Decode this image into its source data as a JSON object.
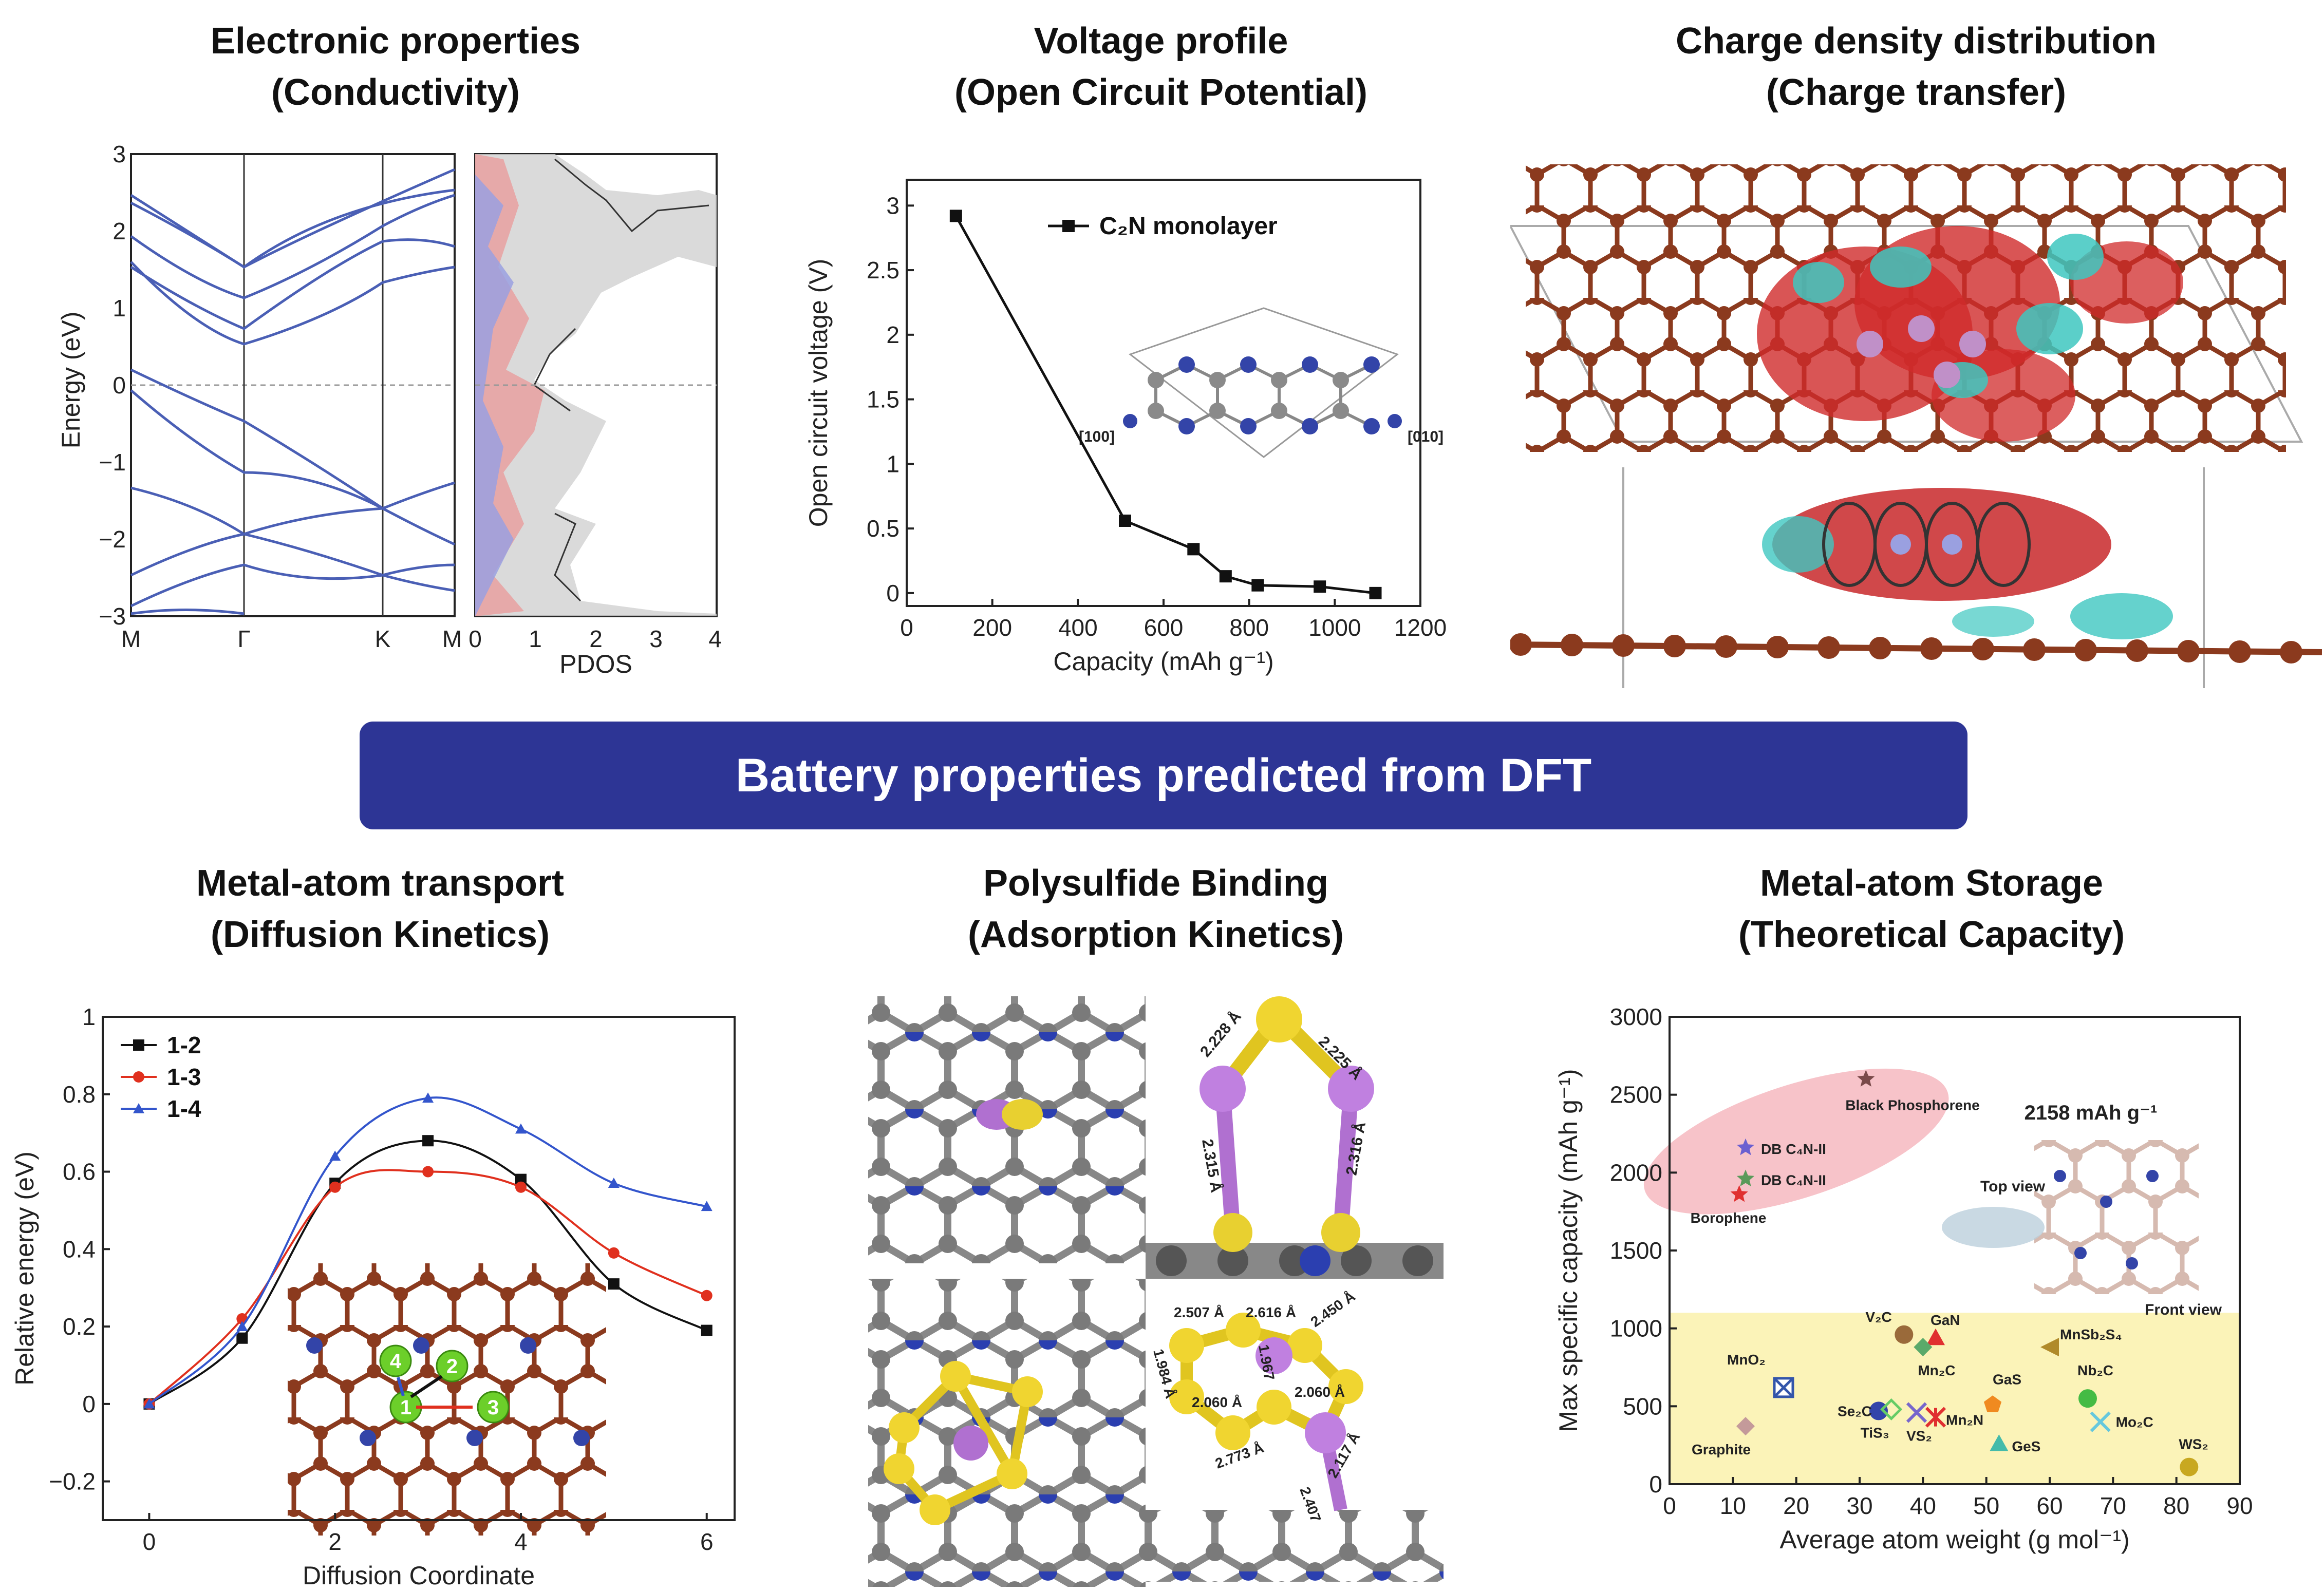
{
  "banner": "Battery properties predicted from DFT",
  "panels": {
    "electronic": {
      "title1": "Electronic properties",
      "title2": "(Conductivity)",
      "ylabel": "Energy (eV)",
      "kpoints": [
        "M",
        "Γ",
        "K",
        "M"
      ],
      "pdos_label": "PDOS",
      "yticks": [
        "3",
        "2",
        "1",
        "0",
        "−1",
        "−2",
        "−3"
      ],
      "pdos_ticks": [
        "0",
        "1",
        "2",
        "3",
        "4"
      ]
    },
    "voltage": {
      "title1": "Voltage profile",
      "title2": "(Open Circuit Potential)",
      "legend": "C₂N monolayer",
      "inset_left": "[100]",
      "inset_right": "[010]"
    },
    "charge": {
      "title1": "Charge density distribution",
      "title2": "(Charge transfer)"
    },
    "transport": {
      "title1": "Metal-atom transport",
      "title2": "(Diffusion Kinetics)",
      "site_labels": [
        "1",
        "2",
        "3",
        "4"
      ]
    },
    "polysulfide": {
      "title1": "Polysulfide Binding",
      "title2": "(Adsorption Kinetics)",
      "top_bonds": [
        "2.228 Å",
        "2.225 Å",
        "2.315 Å",
        "2.316 Å"
      ],
      "bottom_bonds": [
        "2.507 Å",
        "2.616 Å",
        "1.984 Å",
        "1.967",
        "2.450 Å",
        "2.060 Å",
        "2.060 Å",
        "2.773 Å",
        "2.117 Å",
        "2.407"
      ]
    },
    "storage": {
      "title1": "Metal-atom Storage",
      "title2": "(Theoretical Capacity)",
      "capacity_note": "2158 mAh g⁻¹",
      "top_view": "Top view",
      "front_view": "Front view"
    }
  },
  "chart_data": [
    {
      "type": "line",
      "title": "Voltage profile",
      "xlabel": "Capacity (mAh g⁻¹)",
      "ylabel": "Open circuit voltage (V)",
      "xlim": [
        0,
        1200
      ],
      "ylim": [
        -0.1,
        3.2
      ],
      "xticks": [
        0,
        200,
        400,
        600,
        800,
        1000,
        1200
      ],
      "yticks": [
        0.0,
        0.5,
        1.0,
        1.5,
        2.0,
        2.5,
        3.0
      ],
      "series": [
        {
          "name": "C₂N monolayer",
          "color": "#111111",
          "x": [
            115,
            510,
            670,
            745,
            820,
            965,
            1095
          ],
          "y": [
            2.92,
            0.56,
            0.34,
            0.13,
            0.06,
            0.05,
            0.0
          ]
        }
      ]
    },
    {
      "type": "line",
      "title": "Metal-atom transport",
      "xlabel": "Diffusion Coordinate",
      "ylabel": "Relative energy (eV)",
      "xlim": [
        -0.5,
        6.3
      ],
      "ylim": [
        -0.3,
        1.0
      ],
      "xticks": [
        0,
        2,
        4,
        6
      ],
      "yticks": [
        -0.2,
        0.0,
        0.2,
        0.4,
        0.6,
        0.8,
        1.0
      ],
      "series": [
        {
          "name": "1-2",
          "color": "#111111",
          "marker": "square",
          "x": [
            0,
            1,
            2,
            3,
            4,
            5,
            6
          ],
          "y": [
            0.0,
            0.17,
            0.57,
            0.68,
            0.58,
            0.31,
            0.19
          ]
        },
        {
          "name": "1-3",
          "color": "#e0301e",
          "marker": "circle",
          "x": [
            0,
            1,
            2,
            3,
            4,
            5,
            6
          ],
          "y": [
            0.0,
            0.22,
            0.56,
            0.6,
            0.56,
            0.39,
            0.28
          ]
        },
        {
          "name": "1-4",
          "color": "#3355cc",
          "marker": "triangle",
          "x": [
            0,
            1,
            2,
            3,
            4,
            5,
            6
          ],
          "y": [
            0.0,
            0.2,
            0.64,
            0.79,
            0.71,
            0.57,
            0.51
          ]
        }
      ]
    },
    {
      "type": "scatter",
      "title": "Metal-atom Storage",
      "xlabel": "Average atom weight (g mol⁻¹)",
      "ylabel": "Max specific capacity (mAh g⁻¹)",
      "xlim": [
        0,
        90
      ],
      "ylim": [
        0,
        3000
      ],
      "xticks": [
        0,
        10,
        20,
        30,
        40,
        50,
        60,
        70,
        80,
        90
      ],
      "yticks": [
        0,
        500,
        1000,
        1500,
        2000,
        2500,
        3000
      ],
      "points": [
        {
          "label": "Black Phosphorene",
          "x": 31,
          "y": 2600,
          "color": "#7a4a4a",
          "marker": "star"
        },
        {
          "label": "DB C₄N-II",
          "x": 12,
          "y": 2160,
          "color": "#6b5fd0",
          "marker": "star"
        },
        {
          "label": "DB C₄N-II",
          "x": 12,
          "y": 1960,
          "color": "#5a9a5a",
          "marker": "star"
        },
        {
          "label": "Borophene",
          "x": 11,
          "y": 1860,
          "color": "#e03030",
          "marker": "star"
        },
        {
          "label": "V₂C",
          "x": 37,
          "y": 960,
          "color": "#9a6a3a",
          "marker": "circle"
        },
        {
          "label": "GaN",
          "x": 42,
          "y": 940,
          "color": "#e03030",
          "marker": "triangle"
        },
        {
          "label": "Mn₂C",
          "x": 40,
          "y": 880,
          "color": "#5aaa6a",
          "marker": "diamond"
        },
        {
          "label": "MnSb₂S₄",
          "x": 60,
          "y": 880,
          "color": "#b08a2a",
          "marker": "triangle-left"
        },
        {
          "label": "MnO₂",
          "x": 18,
          "y": 620,
          "color": "#3355aa",
          "marker": "box-x"
        },
        {
          "label": "GaS",
          "x": 51,
          "y": 510,
          "color": "#f08a20",
          "marker": "pentagon"
        },
        {
          "label": "Nb₂C",
          "x": 66,
          "y": 550,
          "color": "#44bb44",
          "marker": "circle"
        },
        {
          "label": "Se₂C",
          "x": 33,
          "y": 470,
          "color": "#3344aa",
          "marker": "circle"
        },
        {
          "label": "TiS₃",
          "x": 35,
          "y": 480,
          "color": "#66cc66",
          "marker": "diamond-x"
        },
        {
          "label": "VS₂",
          "x": 39,
          "y": 460,
          "color": "#7766cc",
          "marker": "x"
        },
        {
          "label": "Mn₂N",
          "x": 42,
          "y": 430,
          "color": "#e03030",
          "marker": "asterisk"
        },
        {
          "label": "Mo₂C",
          "x": 68,
          "y": 400,
          "color": "#66c8dd",
          "marker": "x"
        },
        {
          "label": "GeS",
          "x": 52,
          "y": 260,
          "color": "#44bbaa",
          "marker": "triangle"
        },
        {
          "label": "Graphite",
          "x": 12,
          "y": 372,
          "color": "#c49a9a",
          "marker": "diamond"
        },
        {
          "label": "WS₂",
          "x": 82,
          "y": 110,
          "color": "#c8a820",
          "marker": "circle"
        }
      ],
      "threshold": 1100
    }
  ]
}
